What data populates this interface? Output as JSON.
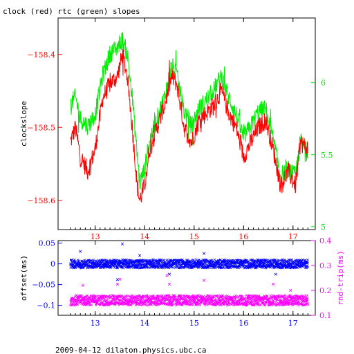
{
  "title": "clock (red) rtc (green) slopes",
  "footer": "2009-04-12  dilaton.physics.ubc.ca",
  "colors": {
    "red": "#ff0000",
    "green": "#00ee00",
    "blue": "#0000ff",
    "magenta": "#ff00ff",
    "frame": "#000000"
  },
  "chart_data": [
    {
      "type": "line",
      "title": "clock (red) rtc (green) slopes",
      "xlabel": "",
      "ylabel": "clockslope",
      "xlim": [
        12.25,
        17.45
      ],
      "ylim": [
        -158.64,
        -158.35
      ],
      "y2lim": [
        4.98,
        6.45
      ],
      "x_ticks": [
        13,
        14,
        15,
        16,
        17
      ],
      "y_ticks": [
        -158.4,
        -158.5,
        -158.6
      ],
      "y2_ticks": [
        6,
        5.5,
        5
      ],
      "x_tick_labels": [
        "13",
        "14",
        "15",
        "16",
        "17"
      ],
      "y_tick_labels": [
        "−158.4",
        "−158.5",
        "−158.6"
      ],
      "y2_tick_labels": [
        "6",
        "5.5",
        "5"
      ],
      "series": [
        {
          "name": "clock",
          "color": "#ff0000",
          "axis": "left",
          "x": [
            12.5,
            12.6,
            12.7,
            12.85,
            13.0,
            13.15,
            13.3,
            13.45,
            13.55,
            13.65,
            13.75,
            13.85,
            13.9,
            14.0,
            14.1,
            14.25,
            14.4,
            14.55,
            14.65,
            14.8,
            14.95,
            15.1,
            15.25,
            15.4,
            15.55,
            15.7,
            15.85,
            16.0,
            16.15,
            16.3,
            16.45,
            16.6,
            16.75,
            16.9,
            17.05,
            17.15,
            17.3
          ],
          "y": [
            -158.52,
            -158.5,
            -158.54,
            -158.56,
            -158.53,
            -158.46,
            -158.44,
            -158.43,
            -158.4,
            -158.43,
            -158.5,
            -158.58,
            -158.6,
            -158.58,
            -158.53,
            -158.5,
            -158.47,
            -158.43,
            -158.44,
            -158.5,
            -158.52,
            -158.49,
            -158.48,
            -158.47,
            -158.45,
            -158.48,
            -158.5,
            -158.54,
            -158.52,
            -158.5,
            -158.49,
            -158.53,
            -158.58,
            -158.56,
            -158.58,
            -158.52,
            -158.53
          ]
        },
        {
          "name": "rtc",
          "color": "#00ee00",
          "axis": "right",
          "x": [
            12.5,
            12.6,
            12.7,
            12.85,
            13.0,
            13.15,
            13.3,
            13.45,
            13.55,
            13.65,
            13.75,
            13.85,
            13.9,
            14.0,
            14.1,
            14.25,
            14.4,
            14.55,
            14.65,
            14.8,
            14.95,
            15.1,
            15.25,
            15.4,
            15.55,
            15.7,
            15.85,
            16.0,
            16.15,
            16.3,
            16.45,
            16.6,
            16.75,
            16.9,
            17.05,
            17.15,
            17.3
          ],
          "y": [
            5.85,
            5.9,
            5.75,
            5.7,
            5.78,
            6.05,
            6.2,
            6.25,
            6.3,
            6.2,
            5.9,
            5.5,
            5.3,
            5.4,
            5.6,
            5.75,
            5.9,
            6.12,
            6.05,
            5.8,
            5.7,
            5.82,
            5.88,
            5.95,
            6.05,
            5.9,
            5.78,
            5.62,
            5.7,
            5.8,
            5.82,
            5.6,
            5.35,
            5.4,
            5.35,
            5.6,
            5.5
          ]
        }
      ]
    },
    {
      "type": "scatter",
      "xlabel": "",
      "ylabel": "offset(ms)",
      "y2label": "rnd-trip(ms)",
      "xlim": [
        12.25,
        17.45
      ],
      "ylim": [
        -0.124,
        0.056
      ],
      "y2lim": [
        0.1,
        0.4
      ],
      "x_ticks": [
        13,
        14,
        15,
        16,
        17
      ],
      "y_ticks": [
        0.05,
        0,
        -0.05,
        -0.1
      ],
      "y2_ticks": [
        0.4,
        0.3,
        0.2,
        0.1
      ],
      "x_tick_labels": [
        "13",
        "14",
        "15",
        "16",
        "17"
      ],
      "y_tick_labels": [
        "0.05",
        "0",
        "−0.05",
        "−0.1"
      ],
      "y2_tick_labels": [
        "0.4",
        "0.3",
        "0.2",
        "0.1"
      ],
      "series": [
        {
          "name": "offset",
          "color": "#0000ff",
          "axis": "left",
          "marker": "x",
          "band_x": [
            12.5,
            17.3
          ],
          "band_center": 0.0,
          "band_halfwidth": 0.01,
          "outliers_x": [
            13.55,
            13.45,
            14.5,
            13.9,
            15.2,
            16.65,
            12.7
          ],
          "outliers_y": [
            0.048,
            -0.038,
            -0.025,
            0.02,
            0.025,
            -0.025,
            0.03
          ]
        },
        {
          "name": "rnd-trip",
          "color": "#ff00ff",
          "axis": "right",
          "marker": "x",
          "band_x": [
            12.5,
            17.3
          ],
          "band_center": 0.16,
          "band_halfwidth": 0.02,
          "outliers_x": [
            13.5,
            13.45,
            14.45,
            14.5,
            15.2,
            16.6,
            16.95,
            12.75
          ],
          "outliers_y": [
            0.245,
            0.225,
            0.26,
            0.225,
            0.24,
            0.225,
            0.2,
            0.22
          ]
        }
      ]
    }
  ]
}
